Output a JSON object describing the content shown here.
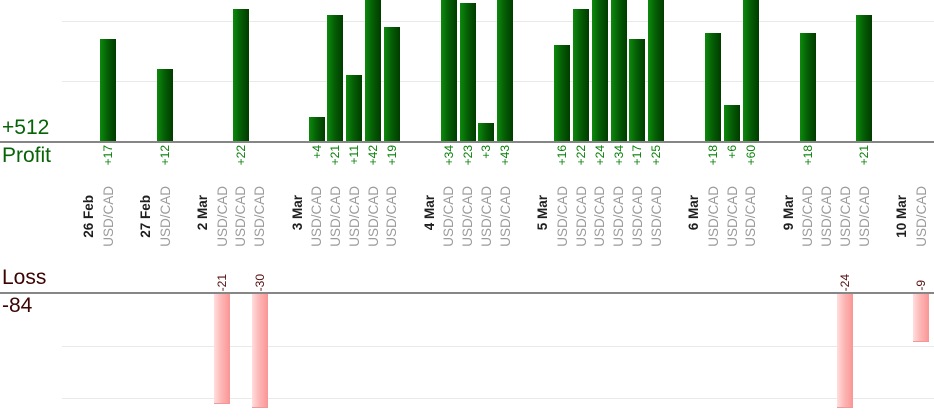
{
  "report": {
    "profit": {
      "title": "Profit",
      "total": "+512"
    },
    "loss": {
      "title": "Loss",
      "total": "-84"
    }
  },
  "chart_data": {
    "type": "bar",
    "description": "Per-trade profit (top, green) and loss (bottom, pink) bar charts grouped by date",
    "instrument_label": "USD/CAD",
    "profit_series": {
      "name": "Profit",
      "total": 512,
      "total_label": "+512",
      "label_color": "#098009",
      "bar_color_left": "#0d8a0d",
      "bar_color_right": "#003c00",
      "gridline_values": [
        10,
        20
      ]
    },
    "loss_series": {
      "name": "Loss",
      "total": -84,
      "total_label": "-84",
      "label_color": "#571010",
      "bar_color_left": "#ffdede",
      "bar_color_right": "#fa9595",
      "gridline_values": [
        -10,
        -20
      ]
    },
    "groups": [
      {
        "date": "26 Feb",
        "values": [
          17
        ]
      },
      {
        "date": "27 Feb",
        "values": [
          12
        ]
      },
      {
        "date": "2 Mar",
        "values": [
          -21,
          22,
          -30
        ]
      },
      {
        "date": "3 Mar",
        "values": [
          4,
          21,
          11,
          42,
          19
        ]
      },
      {
        "date": "4 Mar",
        "values": [
          34,
          23,
          3,
          43
        ]
      },
      {
        "date": "5 Mar",
        "values": [
          16,
          22,
          24,
          34,
          17,
          25
        ]
      },
      {
        "date": "6 Mar",
        "values": [
          18,
          6,
          60
        ]
      },
      {
        "date": "9 Mar",
        "values": [
          18,
          null,
          -24,
          21
        ]
      },
      {
        "date": "10 Mar",
        "values": [
          -9
        ]
      }
    ]
  }
}
